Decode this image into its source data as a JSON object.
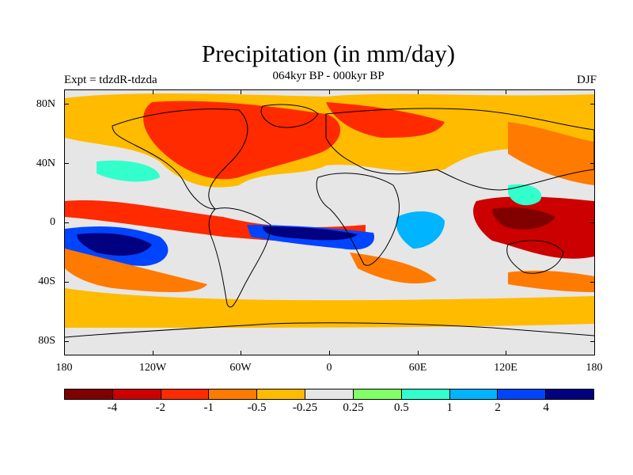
{
  "title": "Precipitation (in mm/day)",
  "subtitle": "064kyr BP - 000kyr BP",
  "left_label": "Expt = tdzdR-tdzda",
  "right_label": "DJF",
  "lat_labels": [
    "80N",
    "40N",
    "0",
    "40S",
    "80S"
  ],
  "lon_labels": [
    "180",
    "120W",
    "60W",
    "0",
    "60E",
    "120E",
    "180"
  ],
  "colorbar": {
    "colors": [
      "#800000",
      "#cc0000",
      "#ff2a00",
      "#ff7a00",
      "#ffbb00",
      "#e6e6e6",
      "#80ff66",
      "#33ffcc",
      "#00b4ff",
      "#0044ff",
      "#000080"
    ],
    "labels": [
      "-4",
      "-2",
      "-1",
      "-0.5",
      "-0.25",
      "0.25",
      "0.5",
      "1",
      "2",
      "4"
    ]
  }
}
